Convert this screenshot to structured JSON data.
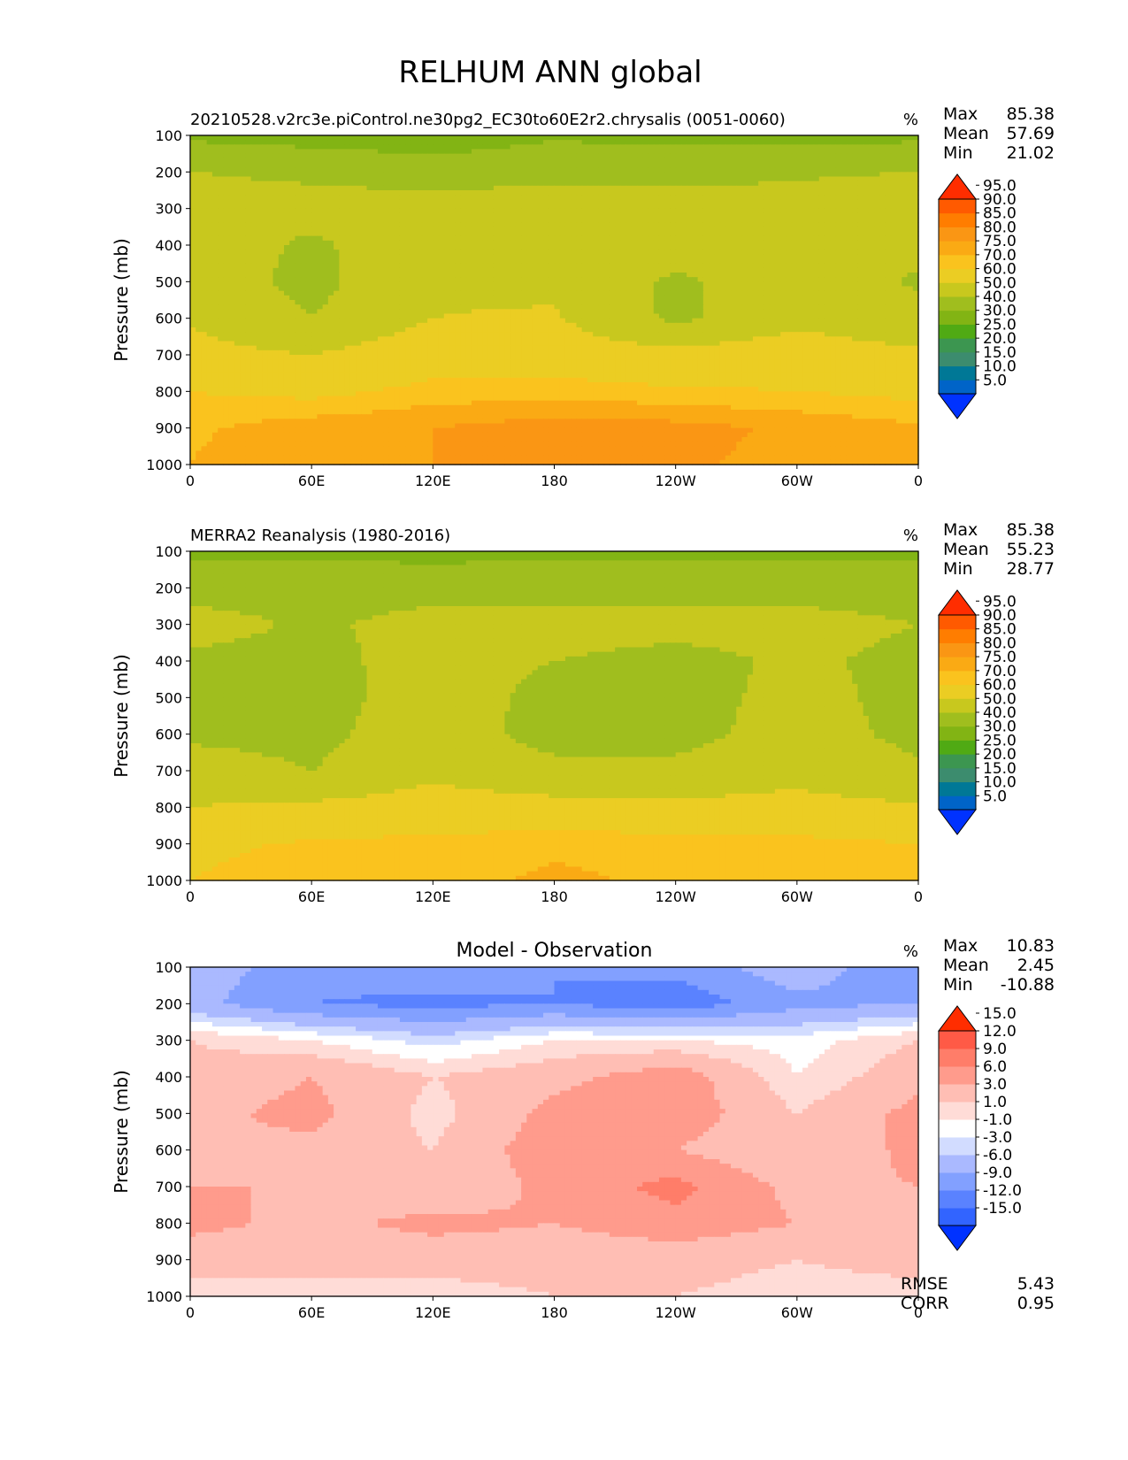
{
  "title": "RELHUM ANN global",
  "x_tick_labels": [
    "0",
    "60E",
    "120E",
    "180",
    "120W",
    "60W",
    "0"
  ],
  "y_tick_labels": [
    "100",
    "200",
    "300",
    "400",
    "500",
    "600",
    "700",
    "800",
    "900",
    "1000"
  ],
  "colors": {
    "field": [
      "#0032ff",
      "#0064c8",
      "#007896",
      "#3c8c6e",
      "#3c9650",
      "#50aa14",
      "#82b414",
      "#a0be1e",
      "#c8c81e",
      "#ebcd23",
      "#fac31e",
      "#faaa14",
      "#fa9614",
      "#ff7d00",
      "#ff5a00",
      "#ff2d00"
    ],
    "diff": [
      "#0032ff",
      "#3264ff",
      "#5a82ff",
      "#82a0ff",
      "#aab9ff",
      "#d2dcff",
      "#ffffff",
      "#ffdcd7",
      "#ffbeb4",
      "#ff9b8c",
      "#ff7d69",
      "#ff5a46",
      "#ff2d00"
    ]
  },
  "chart_data": [
    {
      "type": "heatmap",
      "title": "",
      "left_title": "20210528.v2rc3e.piControl.ne30pg2_EC30to60E2r2.chrysalis (0051-0060)",
      "units": "%",
      "xlabel": "",
      "ylabel": "Pressure (mb)",
      "x": [
        0,
        60,
        120,
        180,
        240,
        300,
        360
      ],
      "y": [
        100,
        200,
        300,
        400,
        500,
        600,
        700,
        800,
        900,
        1000
      ],
      "xlim": [
        0,
        360
      ],
      "ylim": [
        1000,
        100
      ],
      "stats": {
        "Max": "85.38",
        "Mean": "57.69",
        "Min": "21.02"
      },
      "colorbar_levels": [
        "5.0",
        "10.0",
        "15.0",
        "20.0",
        "25.0",
        "30.0",
        "40.0",
        "50.0",
        "60.0",
        "70.0",
        "75.0",
        "80.0",
        "85.0",
        "90.0",
        "95.0"
      ],
      "values": [
        [
          38,
          36,
          35,
          39,
          37,
          36,
          38
        ],
        [
          50,
          48,
          44,
          46,
          47,
          49,
          50
        ],
        [
          55,
          54,
          56,
          57,
          55,
          53,
          56
        ],
        [
          57,
          48,
          58,
          59,
          56,
          55,
          52
        ],
        [
          56,
          47,
          59,
          58,
          48,
          56,
          49
        ],
        [
          59,
          50,
          60,
          61,
          48,
          57,
          52
        ],
        [
          63,
          60,
          66,
          65,
          63,
          66,
          62
        ],
        [
          70,
          68,
          72,
          73,
          71,
          70,
          68
        ],
        [
          74,
          78,
          80,
          83,
          82,
          79,
          76
        ],
        [
          75,
          80,
          80,
          82,
          81,
          78,
          77
        ]
      ]
    },
    {
      "type": "heatmap",
      "title": "",
      "left_title": "MERRA2 Reanalysis (1980-2016)",
      "units": "%",
      "xlabel": "",
      "ylabel": "Pressure (mb)",
      "x": [
        0,
        60,
        120,
        180,
        240,
        300,
        360
      ],
      "y": [
        100,
        200,
        300,
        400,
        500,
        600,
        700,
        800,
        900,
        1000
      ],
      "xlim": [
        0,
        360
      ],
      "ylim": [
        1000,
        100
      ],
      "stats": {
        "Max": "85.38",
        "Mean": "55.23",
        "Min": "28.77"
      },
      "colorbar_levels": [
        "5.0",
        "10.0",
        "15.0",
        "20.0",
        "25.0",
        "30.0",
        "40.0",
        "50.0",
        "60.0",
        "70.0",
        "75.0",
        "80.0",
        "85.0",
        "90.0",
        "95.0"
      ],
      "values": [
        [
          38,
          38,
          37,
          38,
          38,
          38,
          38
        ],
        [
          45,
          46,
          46,
          46,
          46,
          46,
          45
        ],
        [
          55,
          48,
          54,
          55,
          54,
          54,
          50
        ],
        [
          47,
          47,
          54,
          50,
          46,
          52,
          47
        ],
        [
          46,
          46,
          55,
          47,
          45,
          54,
          46
        ],
        [
          48,
          47,
          56,
          46,
          46,
          55,
          47
        ],
        [
          55,
          50,
          58,
          53,
          53,
          57,
          52
        ],
        [
          60,
          62,
          64,
          63,
          62,
          63,
          61
        ],
        [
          68,
          71,
          72,
          74,
          73,
          72,
          70
        ],
        [
          70,
          74,
          73,
          76,
          74,
          73,
          72
        ]
      ]
    },
    {
      "type": "heatmap",
      "title": "Model - Observation",
      "left_title": "",
      "units": "%",
      "xlabel": "",
      "ylabel": "Pressure (mb)",
      "x": [
        0,
        60,
        120,
        180,
        240,
        300,
        360
      ],
      "y": [
        100,
        200,
        300,
        400,
        500,
        600,
        700,
        800,
        900,
        1000
      ],
      "xlim": [
        0,
        360
      ],
      "ylim": [
        1000,
        100
      ],
      "stats": {
        "Max": "10.83",
        "Mean": "2.45",
        "Min": "-10.88"
      },
      "extra_stats": {
        "RMSE": "5.43",
        "CORR": "0.95"
      },
      "colorbar_levels": [
        "-15.0",
        "-12.0",
        "-9.0",
        "-6.0",
        "-3.0",
        "-1.0",
        "1.0",
        "3.0",
        "6.0",
        "9.0",
        "12.0",
        "15.0"
      ],
      "values": [
        [
          -4,
          -8,
          -6,
          -9,
          -8,
          -4,
          -9
        ],
        [
          -5,
          -9,
          -10,
          -9,
          -11,
          -7,
          -6
        ],
        [
          3,
          1,
          -2,
          1,
          1,
          0,
          3
        ],
        [
          4,
          6,
          3,
          5,
          8,
          1,
          5
        ],
        [
          5,
          7,
          2,
          7,
          8,
          3,
          7
        ],
        [
          6,
          5,
          3,
          8,
          6,
          3,
          7
        ],
        [
          6,
          6,
          3,
          7,
          10,
          5,
          6
        ],
        [
          7,
          5,
          7,
          6,
          8,
          6,
          5
        ],
        [
          4,
          4,
          4,
          4,
          4,
          3,
          4
        ],
        [
          2,
          2,
          2,
          3,
          3,
          2,
          2
        ]
      ]
    }
  ]
}
